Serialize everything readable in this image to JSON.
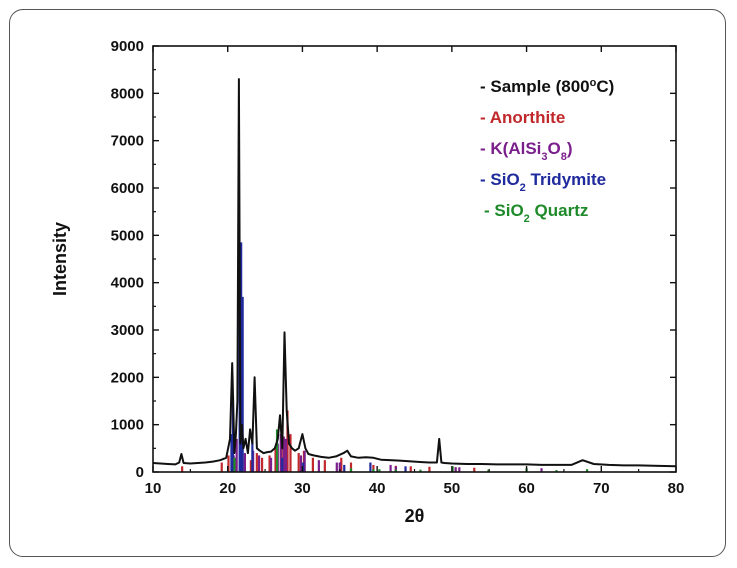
{
  "chart_data": {
    "type": "line",
    "title": "",
    "xlabel": "2θ",
    "ylabel": "Intensity",
    "xlim": [
      10,
      80
    ],
    "ylim": [
      0,
      9000
    ],
    "x_ticks": [
      "10",
      "20",
      "30",
      "40",
      "50",
      "60",
      "70",
      "80"
    ],
    "y_ticks": [
      "0",
      "1000",
      "2000",
      "3000",
      "4000",
      "5000",
      "6000",
      "7000",
      "8000",
      "9000"
    ],
    "grid": false,
    "legend_position": "top-right",
    "legend": [
      {
        "prefix": "- ",
        "text": "Sample (800",
        "sup": "o",
        "suffix": "C)",
        "color": "#111111"
      },
      {
        "prefix": "- ",
        "text": "Anorthite",
        "color": "#c0282c"
      },
      {
        "prefix": "- ",
        "text": "K(AlSi",
        "sub1": "3",
        "mid": "O",
        "sub2": "8",
        "suffix": ")",
        "color": "#7a1f8c"
      },
      {
        "prefix": "- ",
        "text": "SiO",
        "sub1": "2",
        "suffix": " Tridymite",
        "color": "#1f2a9c"
      },
      {
        "prefix": "- ",
        "text": "SiO",
        "sub1": "2",
        "suffix": " Quartz",
        "color": "#1e8a2a"
      }
    ],
    "series": [
      {
        "name": "Sample (800°C)",
        "color": "#111111",
        "x": [
          10,
          11,
          12,
          13,
          13.5,
          13.8,
          14.1,
          15,
          16,
          17,
          18,
          19,
          19.8,
          20.3,
          20.6,
          20.9,
          21.1,
          21.3,
          21.5,
          21.7,
          21.9,
          22.1,
          22.4,
          22.7,
          23.0,
          23.3,
          23.6,
          23.9,
          24.3,
          24.8,
          25.3,
          25.8,
          26.3,
          26.7,
          27.0,
          27.3,
          27.6,
          27.9,
          28.2,
          28.6,
          29.0,
          29.5,
          30.0,
          30.4,
          30.8,
          31.5,
          32.5,
          33.5,
          34.5,
          35.5,
          36.0,
          36.5,
          37.5,
          38.5,
          39.5,
          40.5,
          42.0,
          43.0,
          44.0,
          45.0,
          46.0,
          47.0,
          48.0,
          48.3,
          48.6,
          49.0,
          50.0,
          52.0,
          54.0,
          56.0,
          58.0,
          60.0,
          62.0,
          64.0,
          66.0,
          67.5,
          69.0,
          71.0,
          73.0,
          75.0,
          77.0,
          80.0
        ],
        "y": [
          190,
          180,
          170,
          160,
          200,
          380,
          190,
          180,
          190,
          200,
          220,
          250,
          300,
          700,
          2300,
          400,
          800,
          1500,
          8300,
          600,
          1000,
          500,
          700,
          400,
          900,
          600,
          2000,
          500,
          450,
          400,
          420,
          430,
          500,
          700,
          1200,
          500,
          2950,
          1300,
          600,
          500,
          450,
          500,
          800,
          500,
          380,
          350,
          320,
          300,
          330,
          400,
          450,
          330,
          300,
          310,
          300,
          260,
          250,
          240,
          230,
          220,
          210,
          200,
          200,
          700,
          200,
          190,
          180,
          170,
          170,
          160,
          160,
          160,
          150,
          150,
          150,
          250,
          170,
          150,
          140,
          140,
          130,
          120
        ]
      },
      {
        "name": "Anorthite",
        "color": "#c0282c",
        "x": [
          13.9,
          19.2,
          20.1,
          21.0,
          22.0,
          23.1,
          23.9,
          24.6,
          25.6,
          26.4,
          27.2,
          27.6,
          28.0,
          28.4,
          29.5,
          30.2,
          31.4,
          33.0,
          35.2,
          36.5,
          39.5,
          42.5,
          44.5,
          47.0,
          50.5,
          53.0
        ],
        "y": [
          120,
          200,
          350,
          300,
          280,
          250,
          400,
          300,
          350,
          500,
          900,
          700,
          1300,
          800,
          400,
          450,
          300,
          250,
          300,
          200,
          150,
          130,
          120,
          110,
          100,
          90
        ]
      },
      {
        "name": "K(AlSi3O8)",
        "color": "#7a1f8c",
        "x": [
          20.8,
          21.2,
          22.3,
          23.4,
          24.2,
          25.8,
          26.7,
          27.1,
          27.5,
          27.8,
          29.8,
          30.3,
          32.2,
          34.6,
          35.0,
          41.8,
          42.5,
          50.5,
          51.0,
          62.0
        ],
        "y": [
          350,
          700,
          400,
          450,
          350,
          300,
          600,
          800,
          750,
          700,
          350,
          450,
          250,
          200,
          200,
          150,
          120,
          100,
          100,
          80
        ]
      },
      {
        "name": "SiO2 Tridymite",
        "color": "#1f2a9c",
        "x": [
          20.5,
          20.7,
          21.6,
          21.8,
          22.0,
          23.3,
          27.3,
          30.1,
          35.6,
          39.1,
          43.8
        ],
        "y": [
          800,
          1600,
          4100,
          4850,
          3700,
          800,
          300,
          200,
          150,
          200,
          120
        ]
      },
      {
        "name": "SiO2 Quartz",
        "color": "#1e8a2a",
        "x": [
          20.9,
          26.6,
          36.5,
          39.5,
          40.3,
          42.5,
          45.8,
          50.1,
          54.9,
          60.0,
          64.0,
          68.1
        ],
        "y": [
          300,
          900,
          80,
          60,
          60,
          50,
          50,
          120,
          50,
          80,
          40,
          60
        ]
      }
    ]
  }
}
